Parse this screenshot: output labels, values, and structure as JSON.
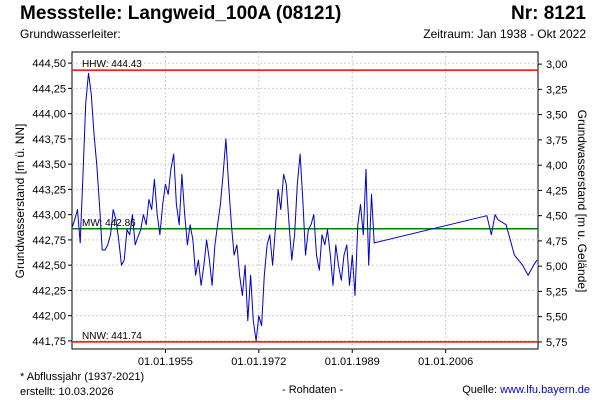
{
  "header": {
    "title": "Messstelle: Langweid_100A (08121)",
    "nr": "Nr: 8121",
    "aquifer_label": "Grundwasserleiter:",
    "period": "Zeitraum: Jan 1938 - Okt 2022"
  },
  "footer": {
    "footnote": "* Abflussjahr (1937-2021)",
    "created": "erstellt:  10.03.2026",
    "raw": "- Rohdaten -",
    "source_label": "Quelle:  ",
    "source_url": "www.lfu.bayern.de"
  },
  "colors": {
    "series": "#0000cc",
    "hhw": "#ff0000",
    "nnw": "#ff0000",
    "mw": "#008000"
  },
  "chart_data": {
    "type": "line",
    "ylabel": "Grundwasserstand [m ü. NN]",
    "y2label": "Grundwasserstand [m u. Gelände]",
    "ylim": [
      441.67,
      444.61
    ],
    "y2lim": [
      2.88,
      5.82
    ],
    "y_ticks": [
      "444,50",
      "444,25",
      "444,00",
      "443,75",
      "443,50",
      "443,25",
      "443,00",
      "442,75",
      "442,50",
      "442,25",
      "442,00",
      "441,75"
    ],
    "y_tick_values": [
      444.5,
      444.25,
      444.0,
      443.75,
      443.5,
      443.25,
      443.0,
      442.75,
      442.5,
      442.25,
      442.0,
      441.75
    ],
    "y2_ticks": [
      "3,00",
      "3,25",
      "3,50",
      "3,75",
      "4,00",
      "4,25",
      "4,50",
      "4,75",
      "5,00",
      "5,25",
      "5,50",
      "5,75"
    ],
    "y2_tick_values": [
      3.0,
      3.25,
      3.5,
      3.75,
      4.0,
      4.25,
      4.5,
      4.75,
      5.0,
      5.25,
      5.5,
      5.75
    ],
    "xlim": [
      1938.0,
      2022.8
    ],
    "x_ticks": [
      "01.01.1955",
      "01.01.1972",
      "01.01.1989",
      "01.01.2006"
    ],
    "x_tick_values": [
      1955.0,
      1972.0,
      1989.0,
      2006.0
    ],
    "grid": true,
    "reference_lines": [
      {
        "label": "HHW: 444.43",
        "value": 444.43,
        "color": "#ff0000"
      },
      {
        "label": "MW: 442.86",
        "value": 442.86,
        "color": "#008000"
      },
      {
        "label": "NNW: 441.74",
        "value": 441.74,
        "color": "#ff0000"
      }
    ],
    "series": [
      {
        "x": [
          1938.0,
          1938.5,
          1939.0,
          1939.5,
          1940.0,
          1940.5,
          1941.0,
          1941.5,
          1942.0,
          1942.5,
          1943.0,
          1943.5,
          1944.0,
          1944.5,
          1945.0,
          1945.5,
          1946.0,
          1946.5,
          1947.0,
          1947.5,
          1948.0,
          1948.5,
          1949.0,
          1949.5,
          1950.0,
          1950.5,
          1951.0,
          1951.5,
          1952.0,
          1952.5,
          1953.0,
          1953.5,
          1954.0,
          1954.5,
          1955.0,
          1955.5,
          1956.0,
          1956.5,
          1957.0,
          1957.5,
          1958.0,
          1958.5,
          1959.0,
          1959.5,
          1960.0,
          1960.5,
          1961.0,
          1961.5,
          1962.0,
          1962.5,
          1963.0,
          1963.5,
          1964.0,
          1964.5,
          1965.0,
          1965.5,
          1966.0,
          1966.5,
          1967.0,
          1967.5,
          1968.0,
          1968.5,
          1969.0,
          1969.5,
          1970.0,
          1970.5,
          1971.0,
          1971.5,
          1972.0,
          1972.5,
          1973.0,
          1973.5,
          1974.0,
          1974.5,
          1975.0,
          1975.5,
          1976.0,
          1976.5,
          1977.0,
          1977.5,
          1978.0,
          1978.5,
          1979.0,
          1979.5,
          1980.0,
          1980.5,
          1981.0,
          1981.5,
          1982.0,
          1982.5,
          1983.0,
          1983.5,
          1984.0,
          1984.5,
          1985.0,
          1985.5,
          1986.0,
          1986.5,
          1987.0,
          1987.5,
          1988.0,
          1988.5,
          1989.0,
          1989.5,
          1990.0,
          1990.5,
          1991.0,
          1991.5,
          1992.0,
          1992.5,
          1993.0,
          2013.5,
          2014.3,
          2015.0,
          2015.5,
          2017.0,
          2018.5,
          2020.0,
          2021.0,
          2022.0,
          2022.6
        ],
        "values": [
          442.87,
          442.95,
          443.05,
          442.72,
          443.4,
          444.1,
          444.4,
          444.2,
          443.8,
          443.5,
          443.1,
          442.65,
          442.65,
          442.7,
          442.8,
          443.05,
          442.95,
          442.75,
          442.5,
          442.55,
          442.85,
          442.8,
          443.0,
          442.7,
          442.78,
          442.85,
          443.0,
          442.9,
          443.15,
          443.05,
          443.35,
          443.0,
          442.8,
          443.1,
          443.3,
          443.2,
          443.45,
          443.6,
          443.1,
          442.9,
          443.4,
          443.0,
          442.7,
          442.9,
          442.75,
          442.4,
          442.55,
          442.3,
          442.5,
          442.75,
          442.55,
          442.3,
          442.7,
          442.9,
          443.1,
          443.4,
          443.75,
          443.3,
          442.9,
          442.6,
          442.7,
          442.4,
          442.2,
          442.5,
          441.95,
          442.4,
          441.95,
          441.75,
          442.0,
          441.9,
          442.4,
          442.7,
          442.8,
          442.5,
          442.85,
          443.25,
          443.05,
          443.4,
          443.3,
          442.9,
          442.55,
          442.8,
          443.3,
          443.6,
          443.15,
          442.6,
          442.85,
          442.9,
          443.0,
          442.6,
          442.45,
          442.8,
          442.7,
          442.85,
          442.6,
          442.3,
          442.7,
          442.5,
          442.35,
          442.6,
          442.7,
          442.3,
          442.6,
          442.2,
          442.9,
          443.1,
          442.8,
          443.45,
          442.5,
          443.2,
          442.72,
          442.99,
          442.8,
          443.0,
          442.95,
          442.9,
          442.6,
          442.5,
          442.4,
          442.5,
          442.55
        ]
      }
    ]
  }
}
